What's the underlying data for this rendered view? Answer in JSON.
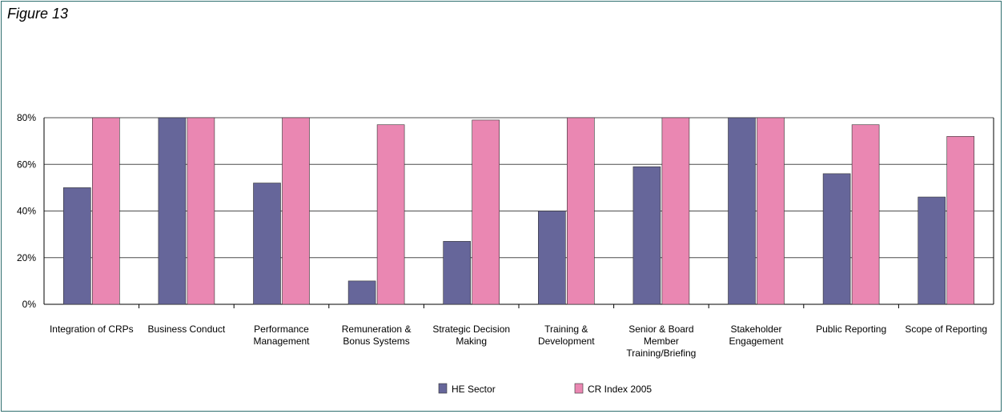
{
  "figure_label": "Figure 13",
  "colors": {
    "he_sector": "#66669a",
    "cr_index": "#ea87b2",
    "axis": "#000000",
    "grid": "#4d4d4d",
    "frame": "#2f6f6f"
  },
  "chart_data": {
    "type": "bar",
    "title": "",
    "xlabel": "",
    "ylabel": "",
    "ylim": [
      0,
      80
    ],
    "y_ticks": [
      "0%",
      "20%",
      "40%",
      "60%",
      "80%"
    ],
    "y_tick_values": [
      0,
      20,
      40,
      60,
      80
    ],
    "grid": true,
    "legend_position": "bottom",
    "categories": [
      [
        "Integration of CRPs"
      ],
      [
        "Business Conduct"
      ],
      [
        "Performance",
        "Management"
      ],
      [
        "Remuneration &",
        "Bonus Systems"
      ],
      [
        "Strategic Decision",
        "Making"
      ],
      [
        "Training &",
        "Development"
      ],
      [
        "Senior & Board",
        "Member",
        "Training/Briefing"
      ],
      [
        "Stakeholder",
        "Engagement"
      ],
      [
        "Public Reporting"
      ],
      [
        "Scope of Reporting"
      ]
    ],
    "series": [
      {
        "name": "HE Sector",
        "values": [
          50,
          80,
          52,
          10,
          27,
          40,
          59,
          80,
          56,
          46
        ]
      },
      {
        "name": "CR Index 2005",
        "values": [
          80,
          80,
          80,
          77,
          79,
          80,
          80,
          80,
          77,
          72
        ]
      }
    ]
  }
}
